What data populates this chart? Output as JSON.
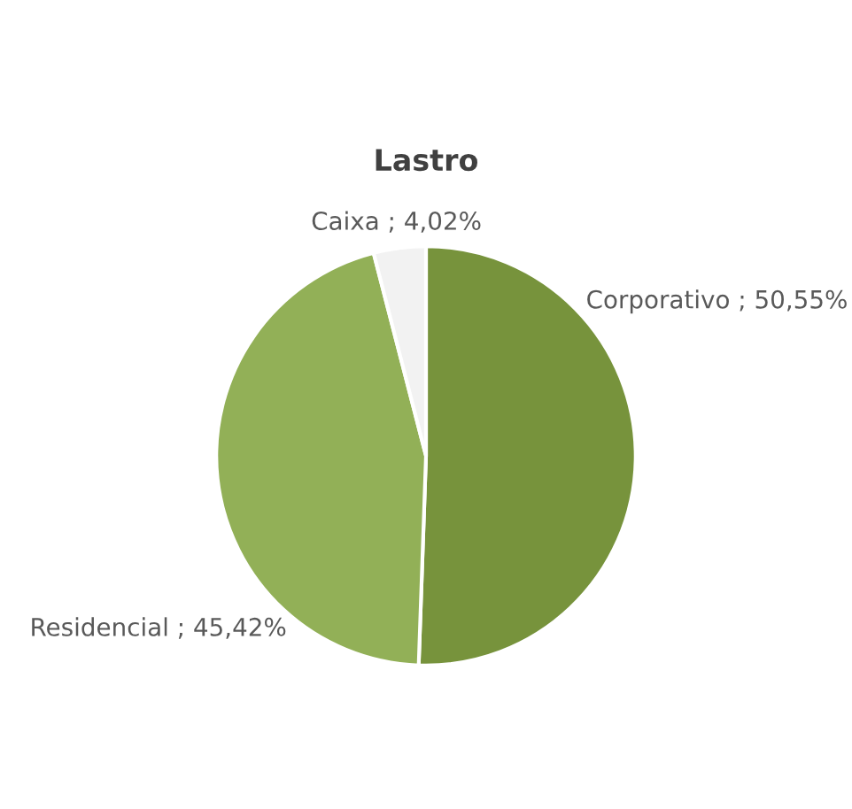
{
  "chart_data": {
    "type": "pie",
    "title": "Lastro",
    "categories": [
      "Corporativo",
      "Residencial",
      "Caixa"
    ],
    "values": [
      50.55,
      45.42,
      4.02
    ],
    "value_labels": [
      "50,55%",
      "45,42%",
      "4,02%"
    ],
    "colors": [
      "#77933c",
      "#92b057",
      "#f2f2f2"
    ],
    "legend": false
  }
}
